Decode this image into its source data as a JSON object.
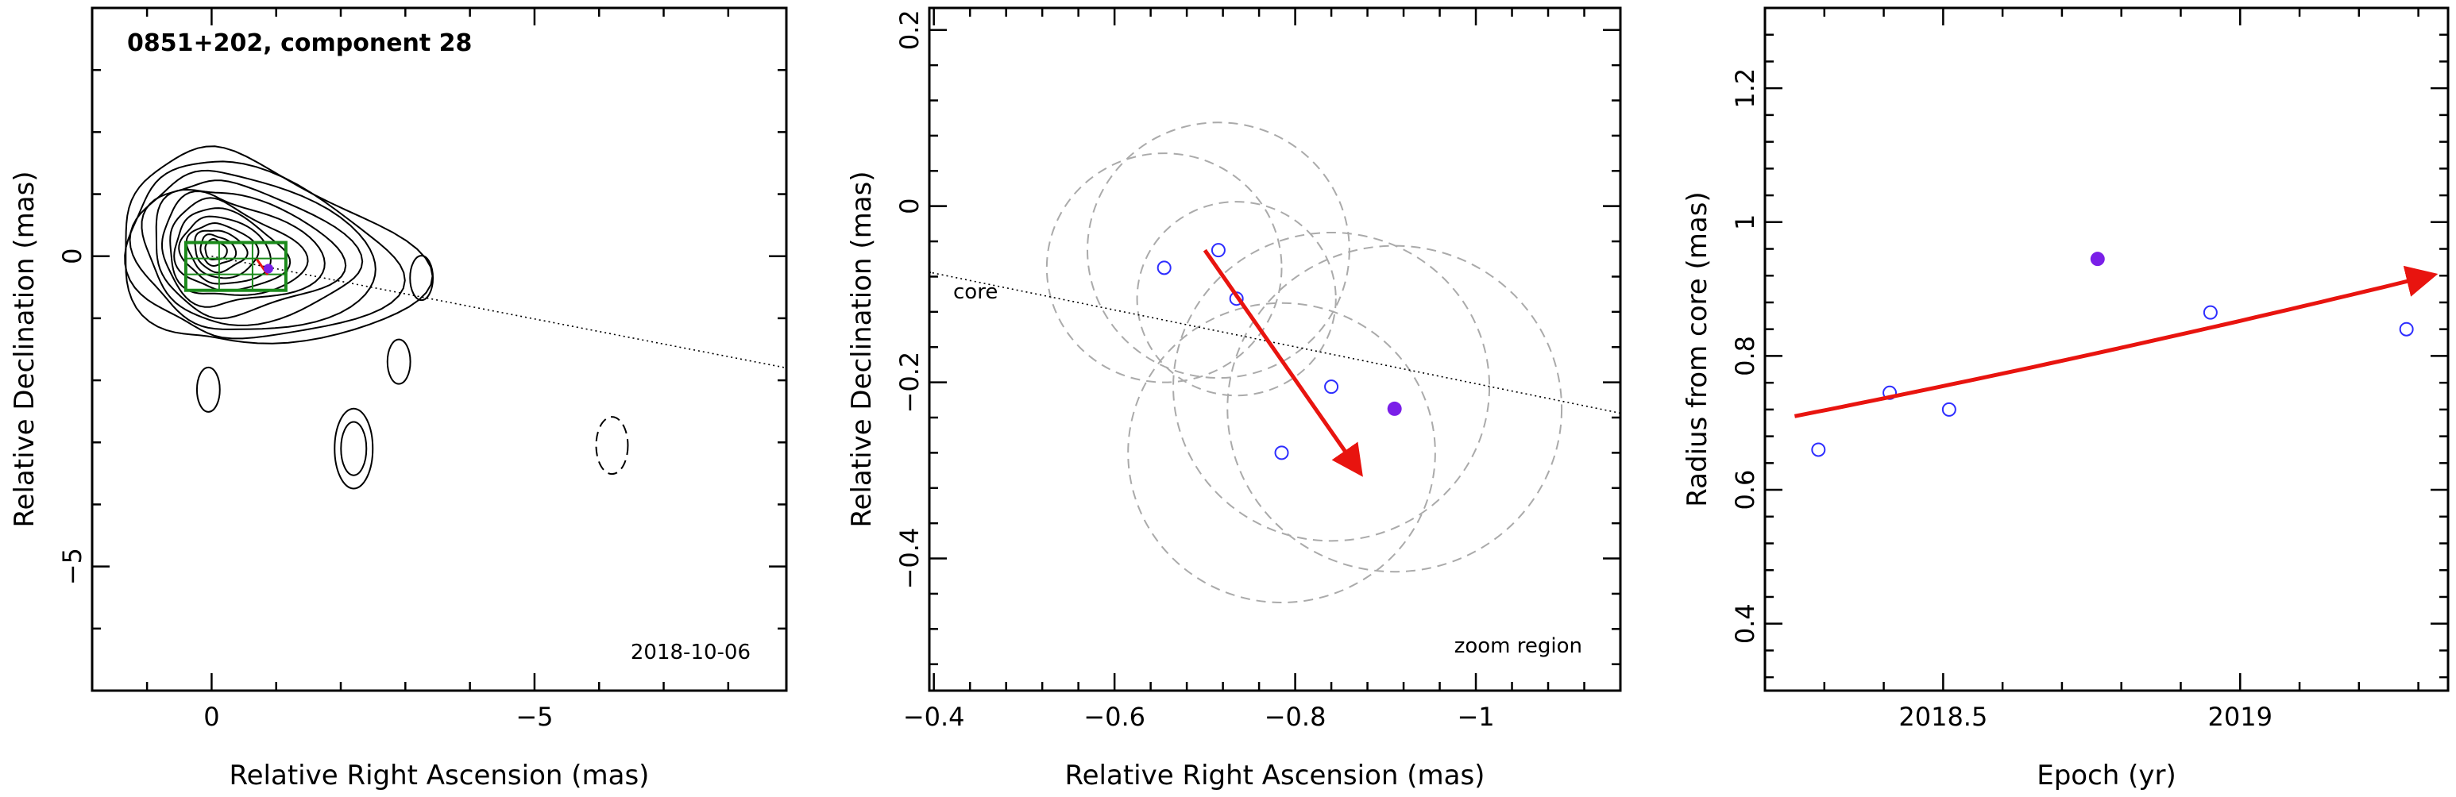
{
  "colors": {
    "axes": "#000000",
    "contours": "#000000",
    "beam_circles": "#aaaaaa",
    "open_markers": "#2d2dff",
    "highlight_marker": "#7a1fe8",
    "velocity_arrow": "#e8140f",
    "zoom_box": "#1b8a1b"
  },
  "chart_data": [
    {
      "type": "contour",
      "title": "0851+202, component 28",
      "annotation": "2018-10-06",
      "xlabel": "Relative Right Ascension (mas)",
      "ylabel": "Relative Declination (mas)",
      "xlim": [
        1.85,
        -8.9
      ],
      "ylim": [
        -7,
        4
      ],
      "xticks": [
        0,
        -5
      ],
      "xtick_labels": [
        "0",
        "−5"
      ],
      "yticks": [
        0,
        -5
      ],
      "ytick_labels": [
        "0",
        "−5"
      ],
      "zoom_box": {
        "x": [
          0.4,
          -1.15
        ],
        "y": [
          0.22,
          -0.55
        ]
      },
      "jet_direction_line": {
        "x": [
          0,
          -8.9
        ],
        "y": [
          0,
          -1.8
        ]
      },
      "component_marker": {
        "x": -0.88,
        "y": -0.2
      },
      "core_contours": {
        "x": -0.05,
        "y": 0.1,
        "levels": 13
      },
      "isolated_contours": [
        {
          "x": -2.2,
          "y": -3.1,
          "levels": 2
        },
        {
          "x": -2.9,
          "y": -1.7,
          "levels": 1
        },
        {
          "x": -3.25,
          "y": -0.35,
          "levels": 1
        },
        {
          "x": 0.05,
          "y": -2.15,
          "levels": 1
        }
      ],
      "negative_contour": {
        "x": -6.2,
        "y": -3.05
      }
    },
    {
      "type": "scatter",
      "xlabel": "Relative Right Ascension (mas)",
      "ylabel": "Relative Declination (mas)",
      "annotation": "zoom region",
      "line_label": "core",
      "xlim": [
        -0.395,
        -1.16
      ],
      "ylim": [
        -0.55,
        0.225
      ],
      "xticks": [
        -0.4,
        -0.6,
        -0.8,
        -1.0
      ],
      "xtick_labels": [
        "−0.4",
        "−0.6",
        "−0.8",
        "−1"
      ],
      "yticks": [
        0.2,
        0,
        -0.2,
        -0.4
      ],
      "ytick_labels": [
        "0.2",
        "0",
        "−0.2",
        "−0.4"
      ],
      "series": [
        {
          "x": [
            -0.655,
            -0.715,
            -0.735,
            -0.785,
            -0.84
          ],
          "y": [
            -0.07,
            -0.05,
            -0.105,
            -0.28,
            -0.205
          ]
        },
        {
          "x": [
            -0.91
          ],
          "y": [
            -0.23
          ]
        }
      ],
      "beam_circles": [
        {
          "x": -0.655,
          "y": -0.07,
          "r": 0.13
        },
        {
          "x": -0.715,
          "y": -0.05,
          "r": 0.145
        },
        {
          "x": -0.735,
          "y": -0.105,
          "r": 0.11
        },
        {
          "x": -0.785,
          "y": -0.28,
          "r": 0.17
        },
        {
          "x": -0.84,
          "y": -0.205,
          "r": 0.175
        },
        {
          "x": -0.91,
          "y": -0.23,
          "r": 0.185
        }
      ],
      "velocity_arrow": {
        "x": [
          -0.7,
          -0.87
        ],
        "y": [
          -0.05,
          -0.3
        ]
      },
      "core_direction_line": {
        "x": [
          -1.16,
          -0.395
        ],
        "y": [
          -0.235,
          -0.075
        ]
      }
    },
    {
      "type": "scatter",
      "xlabel": "Epoch (yr)",
      "ylabel": "Radius from core (mas)",
      "xlim": [
        2018.2,
        2019.35
      ],
      "ylim": [
        0.3,
        1.32
      ],
      "xticks": [
        2018.5,
        2019
      ],
      "xtick_labels": [
        "2018.5",
        "2019"
      ],
      "yticks": [
        0.4,
        0.6,
        0.8,
        1.0,
        1.2
      ],
      "ytick_labels": [
        "0.4",
        "0.6",
        "0.8",
        "1",
        "1.2"
      ],
      "series": [
        {
          "x": [
            2018.29,
            2018.41,
            2018.51,
            2018.95,
            2019.28
          ],
          "y": [
            0.66,
            0.745,
            0.72,
            0.865,
            0.84
          ]
        },
        {
          "x": [
            2018.76
          ],
          "y": [
            0.945
          ]
        }
      ],
      "fit_arrow": {
        "x": [
          2018.25,
          2019.32
        ],
        "y": [
          0.71,
          0.92
        ]
      }
    }
  ]
}
